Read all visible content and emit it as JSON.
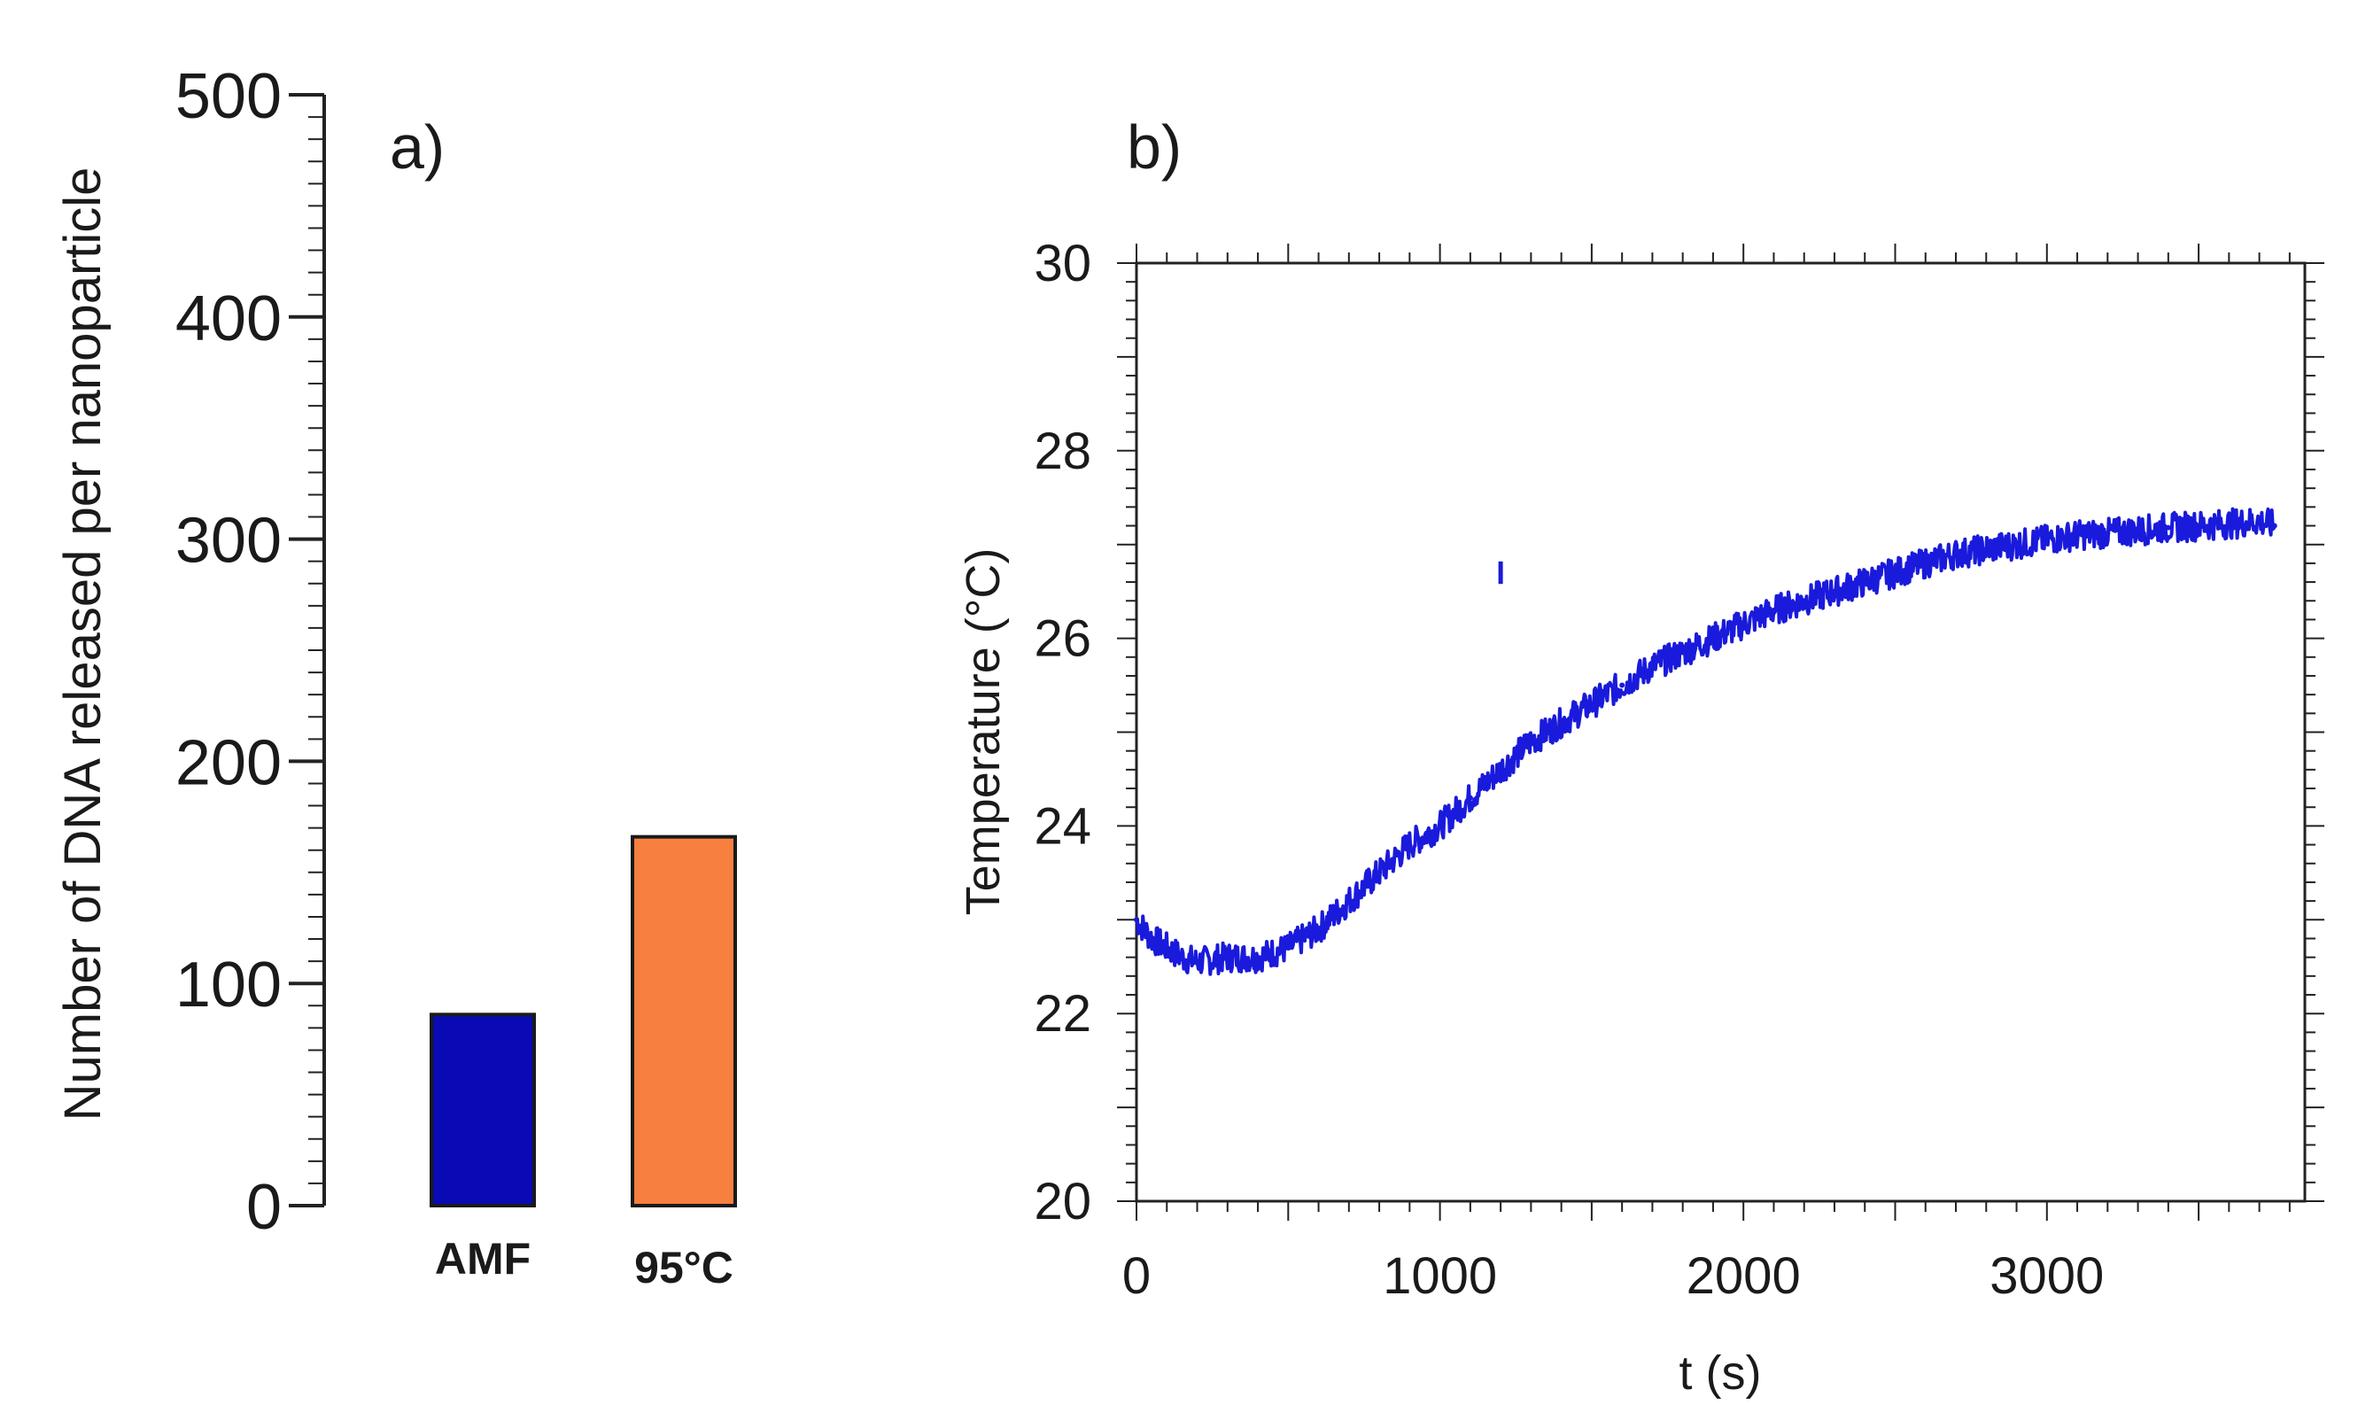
{
  "chart_data": [
    {
      "panel": "a)",
      "type": "bar",
      "title": "",
      "xlabel": "",
      "ylabel": "Number of DNA released per nanoparticle",
      "categories": [
        "AMF",
        "95°C"
      ],
      "values": [
        86,
        166
      ],
      "colors": [
        "#0a0ab4",
        "#f77f3f"
      ],
      "ylim": [
        0,
        500
      ],
      "yticks": [
        0,
        100,
        200,
        300,
        400,
        500
      ],
      "grid": false
    },
    {
      "panel": "b)",
      "type": "line",
      "title": "",
      "xlabel": "t (s)",
      "ylabel": "Temperature (°C)",
      "xlim": [
        0,
        3850
      ],
      "ylim": [
        20,
        30
      ],
      "xticks": [
        0,
        1000,
        2000,
        3000
      ],
      "yticks": [
        20,
        22,
        24,
        26,
        28,
        30
      ],
      "grid": false,
      "series": [
        {
          "name": "Temperature",
          "color": "#1a1adc",
          "x": [
            0,
            50,
            100,
            150,
            200,
            300,
            400,
            500,
            600,
            700,
            800,
            900,
            1000,
            1100,
            1200,
            1300,
            1400,
            1500,
            1600,
            1700,
            1800,
            1900,
            2000,
            2100,
            2200,
            2300,
            2400,
            2500,
            2600,
            2700,
            2800,
            2900,
            3000,
            3100,
            3200,
            3300,
            3400,
            3500,
            3600,
            3700,
            3750
          ],
          "y": [
            23.0,
            22.8,
            22.7,
            22.6,
            22.55,
            22.6,
            22.6,
            22.7,
            22.9,
            23.2,
            23.5,
            23.8,
            24.0,
            24.3,
            24.6,
            24.9,
            25.1,
            25.3,
            25.5,
            25.7,
            25.85,
            26.0,
            26.15,
            26.3,
            26.4,
            26.5,
            26.6,
            26.7,
            26.8,
            26.9,
            26.95,
            27.0,
            27.05,
            27.1,
            27.12,
            27.15,
            27.18,
            27.2,
            27.22,
            27.25,
            27.2
          ]
        },
        {
          "name": "outlier",
          "color": "#1a1adc",
          "x": [
            1200
          ],
          "y": [
            26.7
          ]
        }
      ]
    }
  ]
}
